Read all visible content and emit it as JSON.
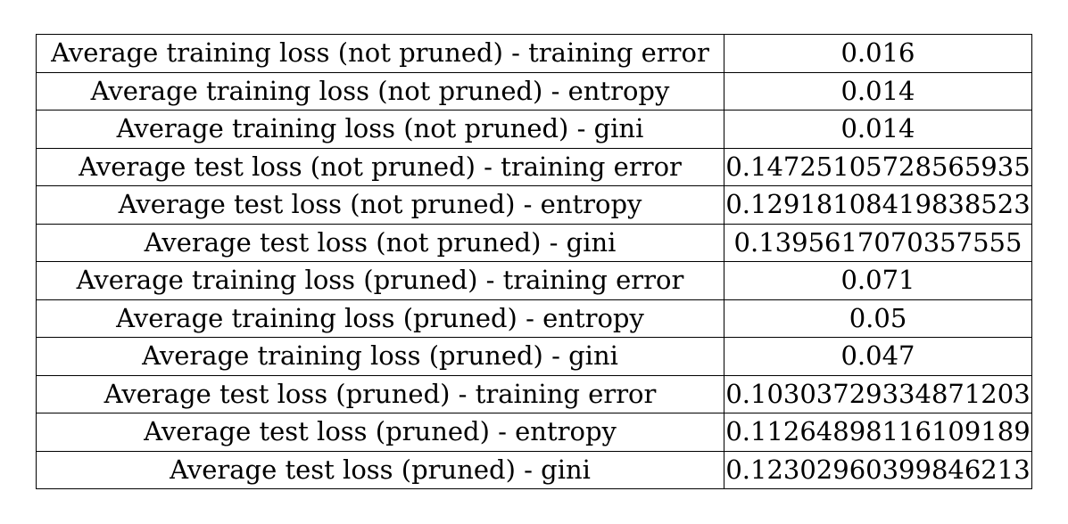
{
  "table": {
    "rows": [
      {
        "label": "Average training loss (not pruned) - training error",
        "value": "0.016"
      },
      {
        "label": "Average training loss (not pruned) - entropy",
        "value": "0.014"
      },
      {
        "label": "Average training loss (not pruned) - gini",
        "value": "0.014"
      },
      {
        "label": "Average test loss (not pruned) - training error",
        "value": "0.14725105728565935"
      },
      {
        "label": "Average test loss (not pruned) - entropy",
        "value": "0.12918108419838523"
      },
      {
        "label": "Average test loss (not pruned) - gini",
        "value": "0.1395617070357555"
      },
      {
        "label": "Average training loss (pruned) - training error",
        "value": "0.071"
      },
      {
        "label": "Average training loss (pruned) - entropy",
        "value": "0.05"
      },
      {
        "label": "Average training loss (pruned) - gini",
        "value": "0.047"
      },
      {
        "label": "Average test loss (pruned) - training error",
        "value": "0.10303729334871203"
      },
      {
        "label": "Average test loss (pruned) - entropy",
        "value": "0.11264898116109189"
      },
      {
        "label": "Average test loss (pruned) - gini",
        "value": "0.12302960399846213"
      }
    ]
  }
}
